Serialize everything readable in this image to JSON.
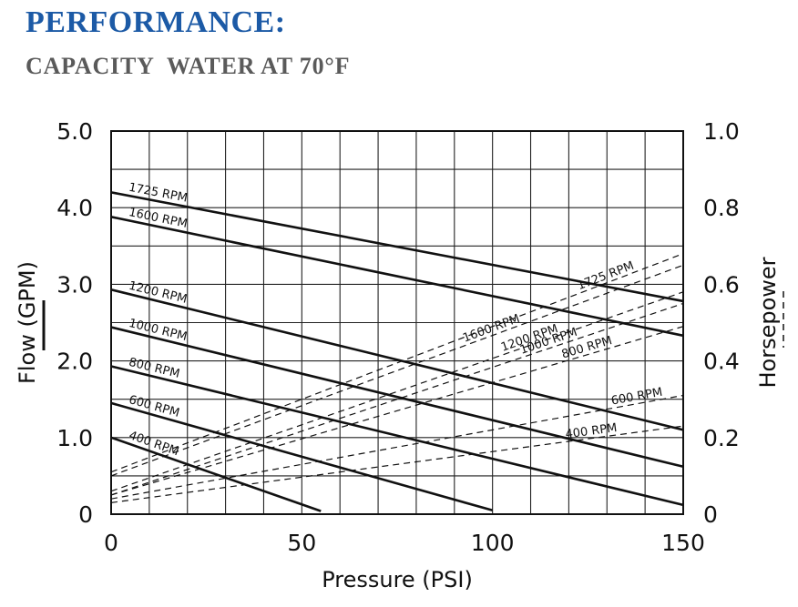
{
  "header": {
    "title": "PERFORMANCE:",
    "subtitle": "CAPACITY  WATER AT 70°F"
  },
  "chart_data": {
    "type": "line",
    "xlabel": "Pressure (PSI)",
    "ylabel": "Flow (GPM)",
    "y2label": "Horsepower",
    "xlim": [
      0,
      150
    ],
    "ylim": [
      0,
      5.0
    ],
    "y2lim": [
      0,
      1.0
    ],
    "x_ticks": [
      "0",
      "50",
      "100",
      "150"
    ],
    "y_ticks": [
      "0",
      "1.0",
      "2.0",
      "3.0",
      "4.0",
      "5.0"
    ],
    "y2_ticks": [
      "0",
      "0.2",
      "0.4",
      "0.6",
      "0.8",
      "1.0"
    ],
    "grid": true,
    "flow_series": [
      {
        "name": "1725 RPM",
        "points": [
          [
            0,
            4.2
          ],
          [
            150,
            2.78
          ]
        ]
      },
      {
        "name": "1600 RPM",
        "points": [
          [
            0,
            3.88
          ],
          [
            150,
            2.33
          ]
        ]
      },
      {
        "name": "1200 RPM",
        "points": [
          [
            0,
            2.93
          ],
          [
            150,
            1.1
          ]
        ]
      },
      {
        "name": "1000 RPM",
        "points": [
          [
            0,
            2.44
          ],
          [
            150,
            0.62
          ]
        ]
      },
      {
        "name": "800 RPM",
        "points": [
          [
            0,
            1.93
          ],
          [
            150,
            0.12
          ]
        ]
      },
      {
        "name": "600 RPM",
        "points": [
          [
            0,
            1.45
          ],
          [
            100,
            0.05
          ]
        ]
      },
      {
        "name": "400 RPM",
        "points": [
          [
            0,
            1.0
          ],
          [
            55,
            0.04
          ]
        ]
      }
    ],
    "horsepower_series": [
      {
        "name": "1725 RPM",
        "points": [
          [
            0,
            0.11
          ],
          [
            150,
            0.68
          ]
        ]
      },
      {
        "name": "1600 RPM",
        "points": [
          [
            0,
            0.1
          ],
          [
            150,
            0.65
          ]
        ]
      },
      {
        "name": "1200 RPM",
        "points": [
          [
            0,
            0.06
          ],
          [
            150,
            0.58
          ]
        ]
      },
      {
        "name": "1000 RPM",
        "points": [
          [
            0,
            0.05
          ],
          [
            150,
            0.55
          ]
        ]
      },
      {
        "name": "800 RPM",
        "points": [
          [
            0,
            0.05
          ],
          [
            150,
            0.49
          ]
        ]
      },
      {
        "name": "600 RPM",
        "points": [
          [
            0,
            0.04
          ],
          [
            150,
            0.31
          ]
        ]
      },
      {
        "name": "400 RPM",
        "points": [
          [
            0,
            0.03
          ],
          [
            150,
            0.23
          ]
        ]
      }
    ]
  }
}
